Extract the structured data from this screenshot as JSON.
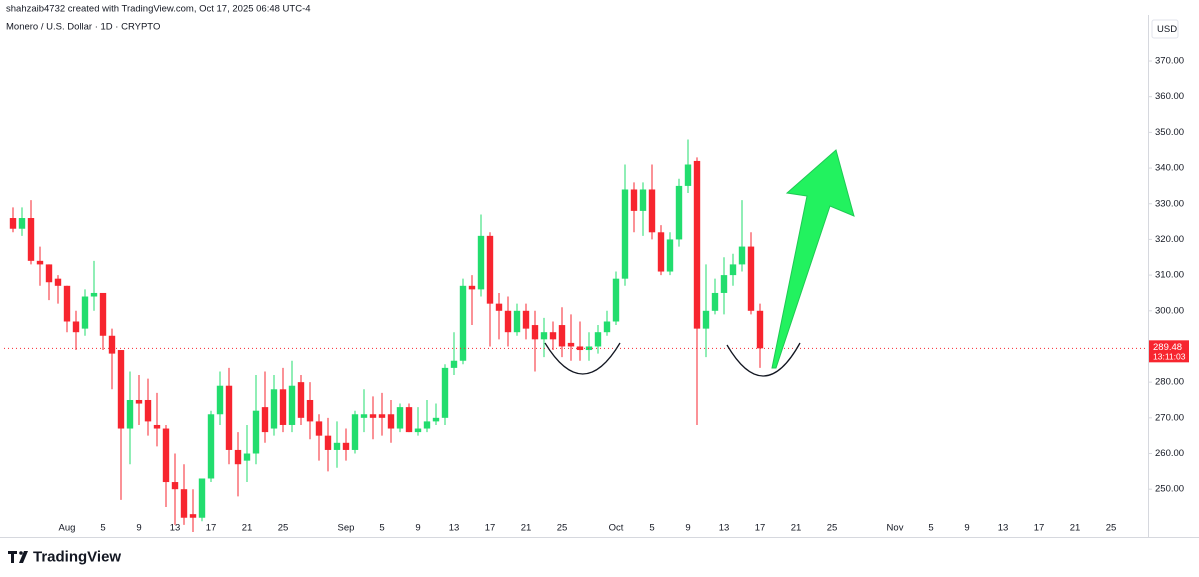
{
  "header": "shahzaib4732 created with TradingView.com, Oct 17, 2025 06:48 UTC-4",
  "footer": "TradingView",
  "chart_data": {
    "type": "candlestick",
    "title": "Monero / U.S. Dollar · 1D · CRYPTO",
    "currency": "USD",
    "up_color": "#22dd6e",
    "down_color": "#f7252f",
    "x": [
      "07-26",
      "07-27",
      "07-28",
      "07-29",
      "07-30",
      "07-31",
      "08-01",
      "08-02",
      "08-03",
      "08-04",
      "08-05",
      "08-06",
      "08-07",
      "08-08",
      "08-09",
      "08-10",
      "08-11",
      "08-12",
      "08-13",
      "08-14",
      "08-15",
      "08-16",
      "08-17",
      "08-18",
      "08-19",
      "08-20",
      "08-21",
      "08-22",
      "08-23",
      "08-24",
      "08-25",
      "08-26",
      "08-27",
      "08-28",
      "08-29",
      "08-30",
      "08-31",
      "09-01",
      "09-02",
      "09-03",
      "09-04",
      "09-05",
      "09-06",
      "09-07",
      "09-08",
      "09-09",
      "09-10",
      "09-11",
      "09-12",
      "09-13",
      "09-14",
      "09-15",
      "09-16",
      "09-17",
      "09-18",
      "09-19",
      "09-20",
      "09-21",
      "09-22",
      "09-23",
      "09-24",
      "09-25",
      "09-26",
      "09-27",
      "09-28",
      "09-29",
      "09-30",
      "10-01",
      "10-02",
      "10-03",
      "10-04",
      "10-05",
      "10-06",
      "10-07",
      "10-08",
      "10-09",
      "10-10",
      "10-11",
      "10-12",
      "10-13",
      "10-14",
      "10-15",
      "10-16",
      "10-17"
    ],
    "open": [
      326,
      323,
      326,
      314,
      313,
      309,
      307,
      297,
      295,
      304,
      305,
      293,
      289,
      267,
      275,
      275,
      268,
      267,
      252,
      250,
      243,
      242,
      253,
      271,
      279,
      261,
      258,
      260,
      273,
      267,
      278,
      268,
      280,
      275,
      269,
      265,
      261,
      263,
      261,
      270,
      271,
      271,
      271,
      267,
      273,
      266,
      267,
      269,
      270,
      284,
      286,
      307,
      306,
      321,
      302,
      300,
      294,
      300,
      296,
      292,
      294,
      296,
      291,
      290,
      289,
      290,
      294,
      297,
      309,
      334,
      328,
      334,
      322,
      311,
      320,
      335,
      342,
      295,
      300,
      305,
      310,
      313,
      318,
      300
    ],
    "high": [
      329,
      329,
      331,
      318,
      313,
      310,
      307,
      300,
      306,
      314,
      305,
      295,
      289,
      283,
      282,
      281,
      277,
      268,
      260,
      257,
      250,
      253,
      272,
      283,
      284,
      266,
      268,
      282,
      283,
      282,
      284,
      286,
      282,
      280,
      271,
      270,
      269,
      267,
      272,
      278,
      276,
      277,
      275,
      274,
      274,
      273,
      275,
      274,
      285,
      294,
      309,
      310,
      327,
      322,
      305,
      304,
      302,
      302,
      300,
      298,
      297,
      301,
      299,
      297,
      294,
      296,
      300,
      311,
      341,
      336,
      336,
      341,
      324,
      322,
      337,
      348,
      343,
      313,
      309,
      315,
      316,
      331,
      322,
      302
    ],
    "low": [
      322,
      321,
      313,
      307,
      303,
      302,
      294,
      289,
      293,
      300,
      289,
      278,
      247,
      257,
      268,
      265,
      262,
      245,
      240,
      240,
      238,
      241,
      252,
      268,
      257,
      248,
      252,
      257,
      263,
      265,
      266,
      266,
      268,
      264,
      258,
      255,
      256,
      258,
      260,
      266,
      264,
      265,
      263,
      266,
      266,
      265,
      266,
      268,
      268,
      282,
      285,
      296,
      304,
      290,
      292,
      290,
      293,
      292,
      283,
      287,
      289,
      287,
      286,
      286,
      286,
      288,
      293,
      296,
      307,
      322,
      321,
      320,
      310,
      310,
      318,
      333,
      268,
      287,
      299,
      299,
      307,
      311,
      299,
      284
    ],
    "close": [
      323,
      326,
      314,
      313,
      308,
      307,
      297,
      294,
      304,
      305,
      293,
      288,
      267,
      275,
      274,
      269,
      267,
      252,
      250,
      242,
      242,
      253,
      271,
      279,
      261,
      257,
      260,
      272,
      266,
      278,
      268,
      279,
      270,
      269,
      265,
      261,
      263,
      261,
      271,
      271,
      270,
      270,
      267,
      273,
      266,
      267,
      269,
      270,
      284,
      286,
      307,
      306,
      321,
      302,
      300,
      294,
      300,
      295,
      292,
      294,
      292,
      290,
      290,
      289,
      290,
      294,
      297,
      309,
      334,
      328,
      334,
      322,
      311,
      320,
      335,
      341,
      295,
      300,
      305,
      310,
      313,
      318,
      300,
      289.48
    ],
    "last_price": 289.48,
    "countdown": "13:11:03",
    "xlim": [
      "07-25",
      "11-29"
    ],
    "xticks": [
      {
        "value": "08-01",
        "label": "Aug"
      },
      {
        "value": "08-05",
        "label": "5"
      },
      {
        "value": "08-09",
        "label": "9"
      },
      {
        "value": "08-13",
        "label": "13"
      },
      {
        "value": "08-17",
        "label": "17"
      },
      {
        "value": "08-21",
        "label": "21"
      },
      {
        "value": "08-25",
        "label": "25"
      },
      {
        "value": "09-01",
        "label": "Sep"
      },
      {
        "value": "09-05",
        "label": "5"
      },
      {
        "value": "09-09",
        "label": "9"
      },
      {
        "value": "09-13",
        "label": "13"
      },
      {
        "value": "09-17",
        "label": "17"
      },
      {
        "value": "09-21",
        "label": "21"
      },
      {
        "value": "09-25",
        "label": "25"
      },
      {
        "value": "10-01",
        "label": "Oct"
      },
      {
        "value": "10-05",
        "label": "5"
      },
      {
        "value": "10-09",
        "label": "9"
      },
      {
        "value": "10-13",
        "label": "13"
      },
      {
        "value": "10-17",
        "label": "17"
      },
      {
        "value": "10-21",
        "label": "21"
      },
      {
        "value": "10-25",
        "label": "25"
      },
      {
        "value": "11-01",
        "label": "Nov"
      },
      {
        "value": "11-05",
        "label": "5"
      },
      {
        "value": "11-09",
        "label": "9"
      },
      {
        "value": "11-13",
        "label": "13"
      },
      {
        "value": "11-17",
        "label": "17"
      },
      {
        "value": "11-21",
        "label": "21"
      },
      {
        "value": "11-25",
        "label": "25"
      }
    ],
    "ylim": [
      236.6,
      382.9
    ],
    "yticks": [
      {
        "value": 250,
        "label": "250.00"
      },
      {
        "value": 260,
        "label": "260.00"
      },
      {
        "value": 270,
        "label": "270.00"
      },
      {
        "value": 280,
        "label": "280.00"
      },
      {
        "value": 290,
        "label": "290.00"
      },
      {
        "value": 300,
        "label": "300.00"
      },
      {
        "value": 310,
        "label": "310.00"
      },
      {
        "value": 320,
        "label": "320.00"
      },
      {
        "value": 330,
        "label": "330.00"
      },
      {
        "value": 340,
        "label": "340.00"
      },
      {
        "value": 350,
        "label": "350.00"
      },
      {
        "value": 360,
        "label": "360.00"
      },
      {
        "value": 370,
        "label": "370.00"
      }
    ]
  }
}
